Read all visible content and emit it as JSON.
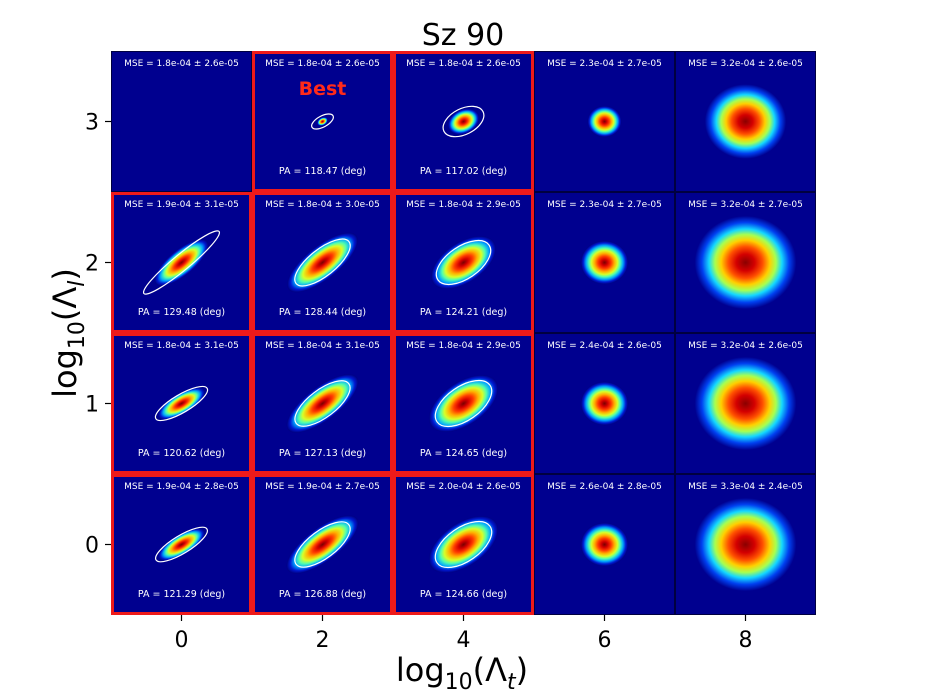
{
  "chart_data": {
    "type": "heatmap",
    "title": "Sz 90",
    "xlabel": {
      "prefix": "log",
      "sub": "10",
      "open": "(Λ",
      "var": "t",
      "close": ")"
    },
    "ylabel": {
      "prefix": "log",
      "sub": "10",
      "open": "(Λ",
      "var": "l",
      "close": ")"
    },
    "x_ticks": [
      "0",
      "2",
      "4",
      "6",
      "8"
    ],
    "y_ticks": [
      "3",
      "2",
      "1",
      "0"
    ],
    "x_values": [
      0,
      2,
      4,
      6,
      8
    ],
    "y_values": [
      3,
      2,
      1,
      0
    ],
    "best_label": "Best",
    "best_cell": {
      "x": 2,
      "y": 3
    },
    "colormap": "jet",
    "highlight_color": "#ee1a1a",
    "cells": [
      [
        {
          "mse": "MSE = 1.8e-04 ± 2.6e-05",
          "pa": "",
          "spread": 0.0,
          "ring": 0,
          "outlined": false
        },
        {
          "mse": "MSE = 1.8e-04 ± 2.6e-05",
          "pa": "PA = 118.47 (deg)",
          "spread": 0.05,
          "ring": 0.35,
          "outlined": true,
          "angle": 118.47,
          "elong": 1.3
        },
        {
          "mse": "MSE = 1.8e-04 ± 2.6e-05",
          "pa": "PA = 117.02 (deg)",
          "spread": 0.15,
          "ring": 0.8,
          "outlined": true,
          "angle": 117.02,
          "elong": 1.25
        },
        {
          "mse": "MSE = 2.3e-04 ± 2.7e-05",
          "pa": "",
          "spread": 0.2,
          "ring": 0,
          "outlined": false
        },
        {
          "mse": "MSE = 3.2e-04 ± 2.6e-05",
          "pa": "",
          "spread": 0.48,
          "ring": 0,
          "outlined": false
        }
      ],
      [
        {
          "mse": "MSE = 1.9e-04 ± 3.1e-05",
          "pa": "PA = 129.48 (deg)",
          "spread": 0.2,
          "ring": 1.0,
          "outlined": true,
          "angle": 129.48,
          "elong": 5.0
        },
        {
          "mse": "MSE = 1.8e-04 ± 3.0e-05",
          "pa": "PA = 128.44 (deg)",
          "spread": 0.26,
          "ring": 1.05,
          "outlined": true,
          "angle": 128.44,
          "elong": 2.0
        },
        {
          "mse": "MSE = 1.8e-04 ± 2.9e-05",
          "pa": "PA = 124.21 (deg)",
          "spread": 0.28,
          "ring": 1.1,
          "outlined": true,
          "angle": 124.21,
          "elong": 1.5
        },
        {
          "mse": "MSE = 2.3e-04 ± 2.7e-05",
          "pa": "",
          "spread": 0.28,
          "ring": 0,
          "outlined": false
        },
        {
          "mse": "MSE = 3.2e-04 ± 2.7e-05",
          "pa": "",
          "spread": 0.6,
          "ring": 0,
          "outlined": false
        }
      ],
      [
        {
          "mse": "MSE = 1.8e-04 ± 3.1e-05",
          "pa": "PA = 120.62 (deg)",
          "spread": 0.16,
          "ring": 0.8,
          "outlined": true,
          "angle": 120.62,
          "elong": 2.6
        },
        {
          "mse": "MSE = 1.8e-04 ± 3.1e-05",
          "pa": "PA = 127.13 (deg)",
          "spread": 0.26,
          "ring": 1.05,
          "outlined": true,
          "angle": 127.13,
          "elong": 1.9
        },
        {
          "mse": "MSE = 1.8e-04 ± 2.9e-05",
          "pa": "PA = 124.65 (deg)",
          "spread": 0.3,
          "ring": 1.15,
          "outlined": true,
          "angle": 124.65,
          "elong": 1.5
        },
        {
          "mse": "MSE = 2.4e-04 ± 2.6e-05",
          "pa": "",
          "spread": 0.28,
          "ring": 0,
          "outlined": false
        },
        {
          "mse": "MSE = 3.2e-04 ± 2.6e-05",
          "pa": "",
          "spread": 0.6,
          "ring": 0,
          "outlined": false
        }
      ],
      [
        {
          "mse": "MSE = 1.9e-04 ± 2.8e-05",
          "pa": "PA = 121.29 (deg)",
          "spread": 0.16,
          "ring": 0.8,
          "outlined": true,
          "angle": 121.29,
          "elong": 2.6
        },
        {
          "mse": "MSE = 1.9e-04 ± 2.7e-05",
          "pa": "PA = 126.88 (deg)",
          "spread": 0.26,
          "ring": 1.05,
          "outlined": true,
          "angle": 126.88,
          "elong": 1.9
        },
        {
          "mse": "MSE = 2.0e-04 ± 2.6e-05",
          "pa": "PA = 124.66 (deg)",
          "spread": 0.3,
          "ring": 1.15,
          "outlined": true,
          "angle": 124.66,
          "elong": 1.5
        },
        {
          "mse": "MSE = 2.6e-04 ± 2.8e-05",
          "pa": "",
          "spread": 0.28,
          "ring": 0,
          "outlined": false
        },
        {
          "mse": "MSE = 3.3e-04 ± 2.4e-05",
          "pa": "",
          "spread": 0.6,
          "ring": 0,
          "outlined": false
        }
      ]
    ]
  }
}
